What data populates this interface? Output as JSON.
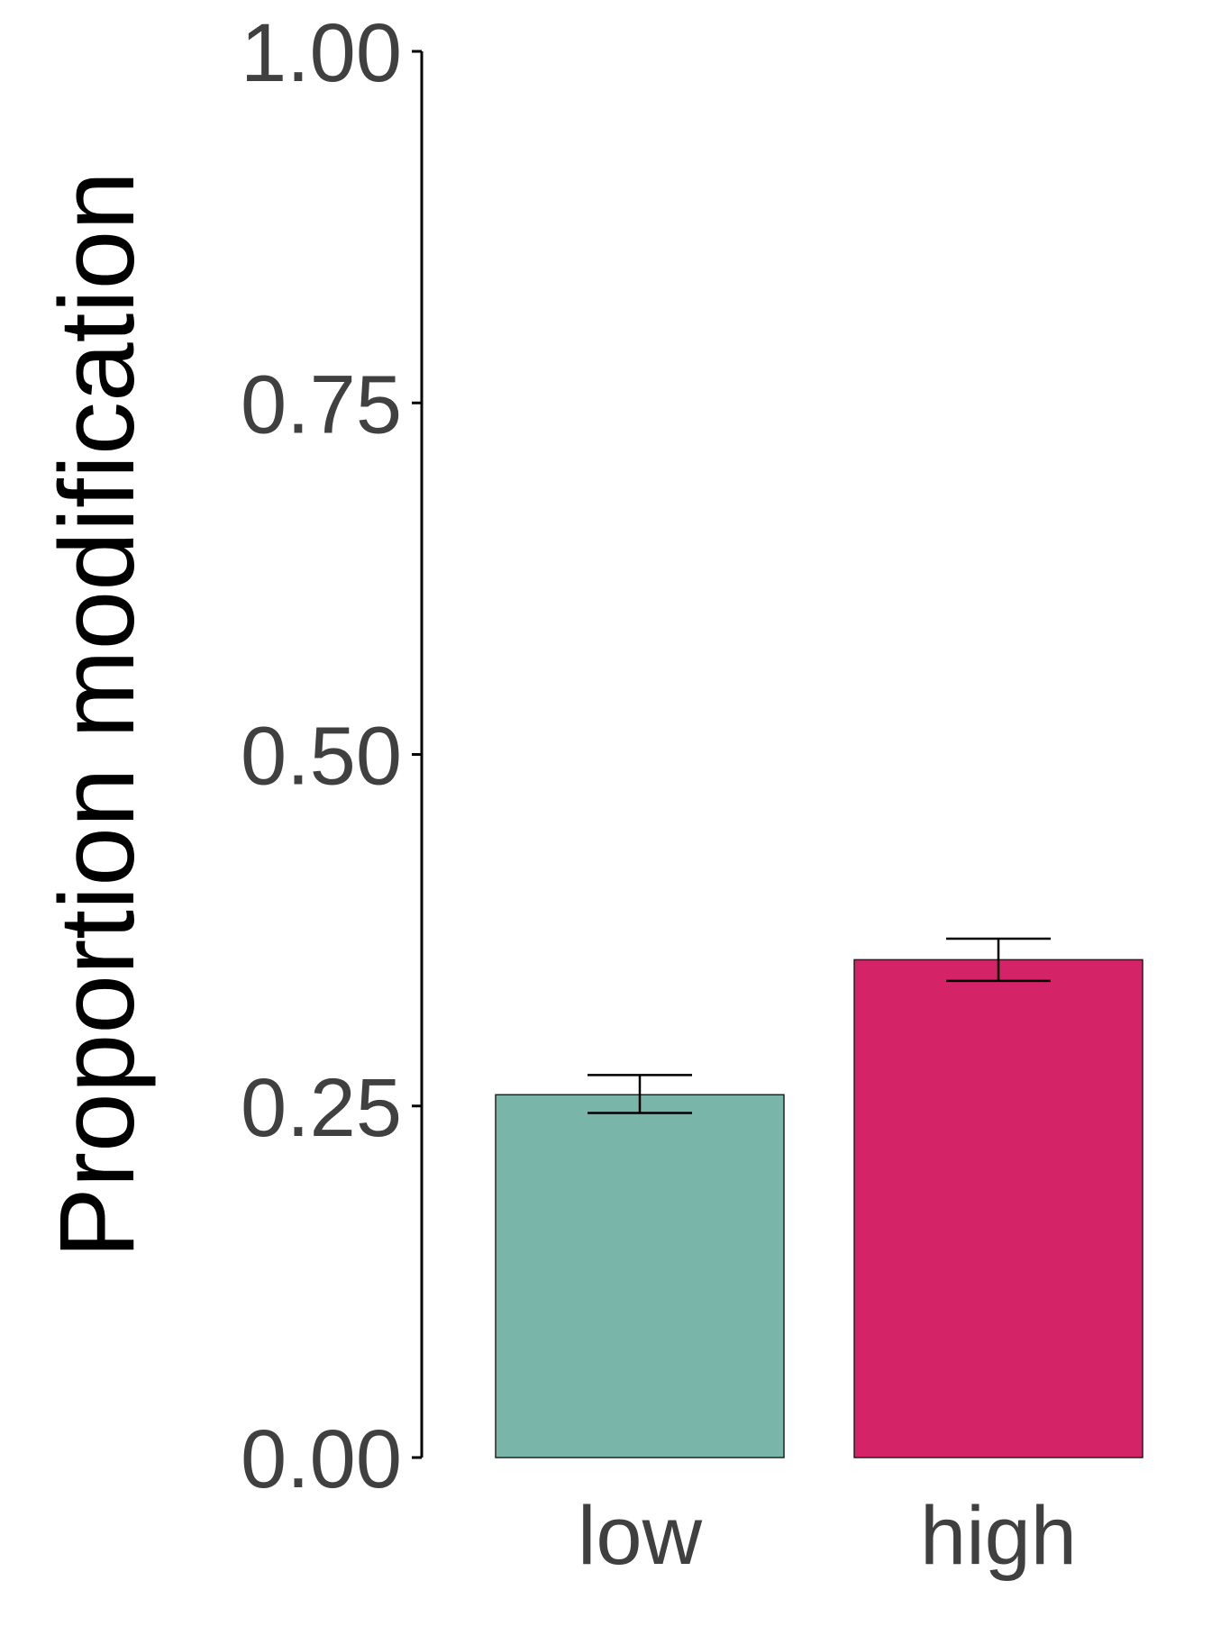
{
  "chart_data": {
    "type": "bar",
    "title": "",
    "xlabel": "",
    "ylabel": "Proportion modification",
    "ylim": [
      0,
      1
    ],
    "yticks": [
      "0.00",
      "0.25",
      "0.50",
      "0.75",
      "1.00"
    ],
    "ytick_values": [
      0,
      0.25,
      0.5,
      0.75,
      1.0
    ],
    "categories": [
      "low",
      "high"
    ],
    "values": [
      0.258,
      0.354
    ],
    "error_low": [
      0.245,
      0.339
    ],
    "error_high": [
      0.272,
      0.369
    ],
    "colors": [
      "#79b6a9",
      "#d52368"
    ],
    "grid": false,
    "legend": "none"
  }
}
